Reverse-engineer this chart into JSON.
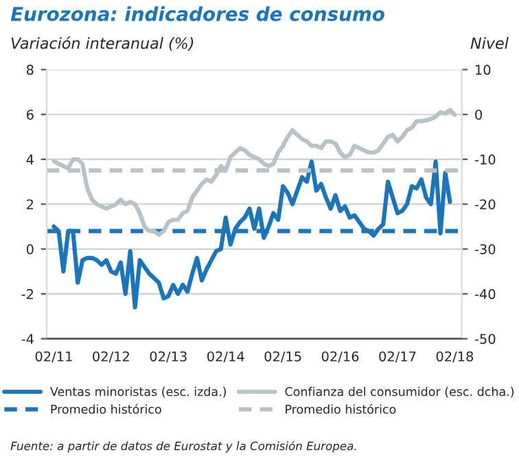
{
  "chart_data": {
    "type": "line",
    "title": "Eurozona: indicadores de consumo",
    "ylabel": "Variación interanual (%)",
    "y2label": "Nivel",
    "annotations": [
      "Fuente: a partir de datos de Eurostat y la Comisión Europea."
    ],
    "categories": [
      "02/11",
      null,
      null,
      null,
      null,
      null,
      null,
      null,
      null,
      null,
      null,
      null,
      "02/12",
      null,
      null,
      null,
      null,
      null,
      null,
      null,
      null,
      null,
      null,
      null,
      "02/13",
      null,
      null,
      null,
      null,
      null,
      null,
      null,
      null,
      null,
      null,
      null,
      "02/14",
      null,
      null,
      null,
      null,
      null,
      null,
      null,
      null,
      null,
      null,
      null,
      "02/15",
      null,
      null,
      null,
      null,
      null,
      null,
      null,
      null,
      null,
      null,
      null,
      "02/16",
      null,
      null,
      null,
      null,
      null,
      null,
      null,
      null,
      null,
      null,
      null,
      "02/17",
      null,
      null,
      null,
      null,
      null,
      null,
      null,
      null,
      null,
      null,
      null,
      "02/18"
    ],
    "ylim": [
      -4,
      8
    ],
    "yticks": [
      -4,
      -2,
      0,
      2,
      4,
      6,
      8
    ],
    "y2lim": [
      -50,
      10
    ],
    "y2ticks": [
      -50,
      -40,
      -30,
      -20,
      -10,
      0,
      10
    ],
    "grid": "y",
    "legend": "bottom",
    "line_style": "solid",
    "marker": "none",
    "series": [
      {
        "name": "Ventas minoristas (esc. izda.)",
        "color": "#1b75bc",
        "values": [
          1.0,
          0.8,
          -1.0,
          0.8,
          0.8,
          -1.5,
          -0.5,
          -0.4,
          -0.4,
          -0.5,
          -0.7,
          -0.5,
          -1.0,
          -1.1,
          -0.6,
          -2.0,
          -0.1,
          -2.6,
          -0.5,
          -0.8,
          -1.1,
          -1.3,
          -1.5,
          -2.2,
          -2.1,
          -1.6,
          -2.0,
          -1.6,
          -1.9,
          -1.1,
          -0.4,
          -1.4,
          -0.9,
          -0.5,
          -0.1,
          0.0,
          1.4,
          0.2,
          0.9,
          1.2,
          1.4,
          1.8,
          0.9,
          1.8,
          0.5,
          1.0,
          1.6,
          1.3,
          2.8,
          2.5,
          2.0,
          2.6,
          3.2,
          3.0,
          3.9,
          2.6,
          2.9,
          2.3,
          1.8,
          2.4,
          1.7,
          1.9,
          1.4,
          1.5,
          1.2,
          0.9,
          0.8,
          0.6,
          0.9,
          1.1,
          3.0,
          2.3,
          1.6,
          1.7,
          2.0,
          2.8,
          2.7,
          3.1,
          2.3,
          2.0,
          3.9,
          0.7,
          3.4,
          2.1,
          null
        ]
      },
      {
        "name": "Confianza del consumidor (esc. dcha.)",
        "color": "#b8c2c7",
        "axis": "y2",
        "values": [
          -10.4,
          -11,
          -11.5,
          -12,
          -10,
          -10,
          -11,
          -16.5,
          -19,
          -20,
          -20.5,
          -21,
          -20.5,
          -20,
          -19,
          -20,
          -19.5,
          -20,
          -22,
          -25,
          -26,
          -26,
          -26.8,
          -26,
          -24,
          -23.5,
          -23.5,
          -22,
          -21.5,
          -18.5,
          -17,
          -15.5,
          -14.5,
          -15,
          -13.5,
          -11.5,
          -12.5,
          -9.5,
          -8.5,
          -7.5,
          -8,
          -9,
          -9.5,
          -10,
          -11,
          -11.5,
          -11,
          -8.5,
          -7,
          -5,
          -3.5,
          -4.5,
          -5.5,
          -6,
          -7,
          -7,
          -7.5,
          -6,
          -6,
          -6.5,
          -8.5,
          -9.5,
          -9,
          -7,
          -7.5,
          -8,
          -8.5,
          -8.5,
          -8,
          -6.5,
          -5,
          -4.5,
          -6,
          -5,
          -3.5,
          -3,
          -1.5,
          -1.5,
          -1.3,
          -1,
          -0.5,
          0.5,
          0.2,
          1.0,
          -0.1
        ]
      }
    ],
    "ref_lines": [
      {
        "axis": "y",
        "value": 0.8,
        "label": "Promedio histórico",
        "color": "#1b75bc",
        "line_style": "dashed"
      },
      {
        "axis": "y2",
        "value": -12.5,
        "label": "Promedio histórico",
        "color": "#b8c2c7",
        "line_style": "dashed"
      }
    ]
  }
}
